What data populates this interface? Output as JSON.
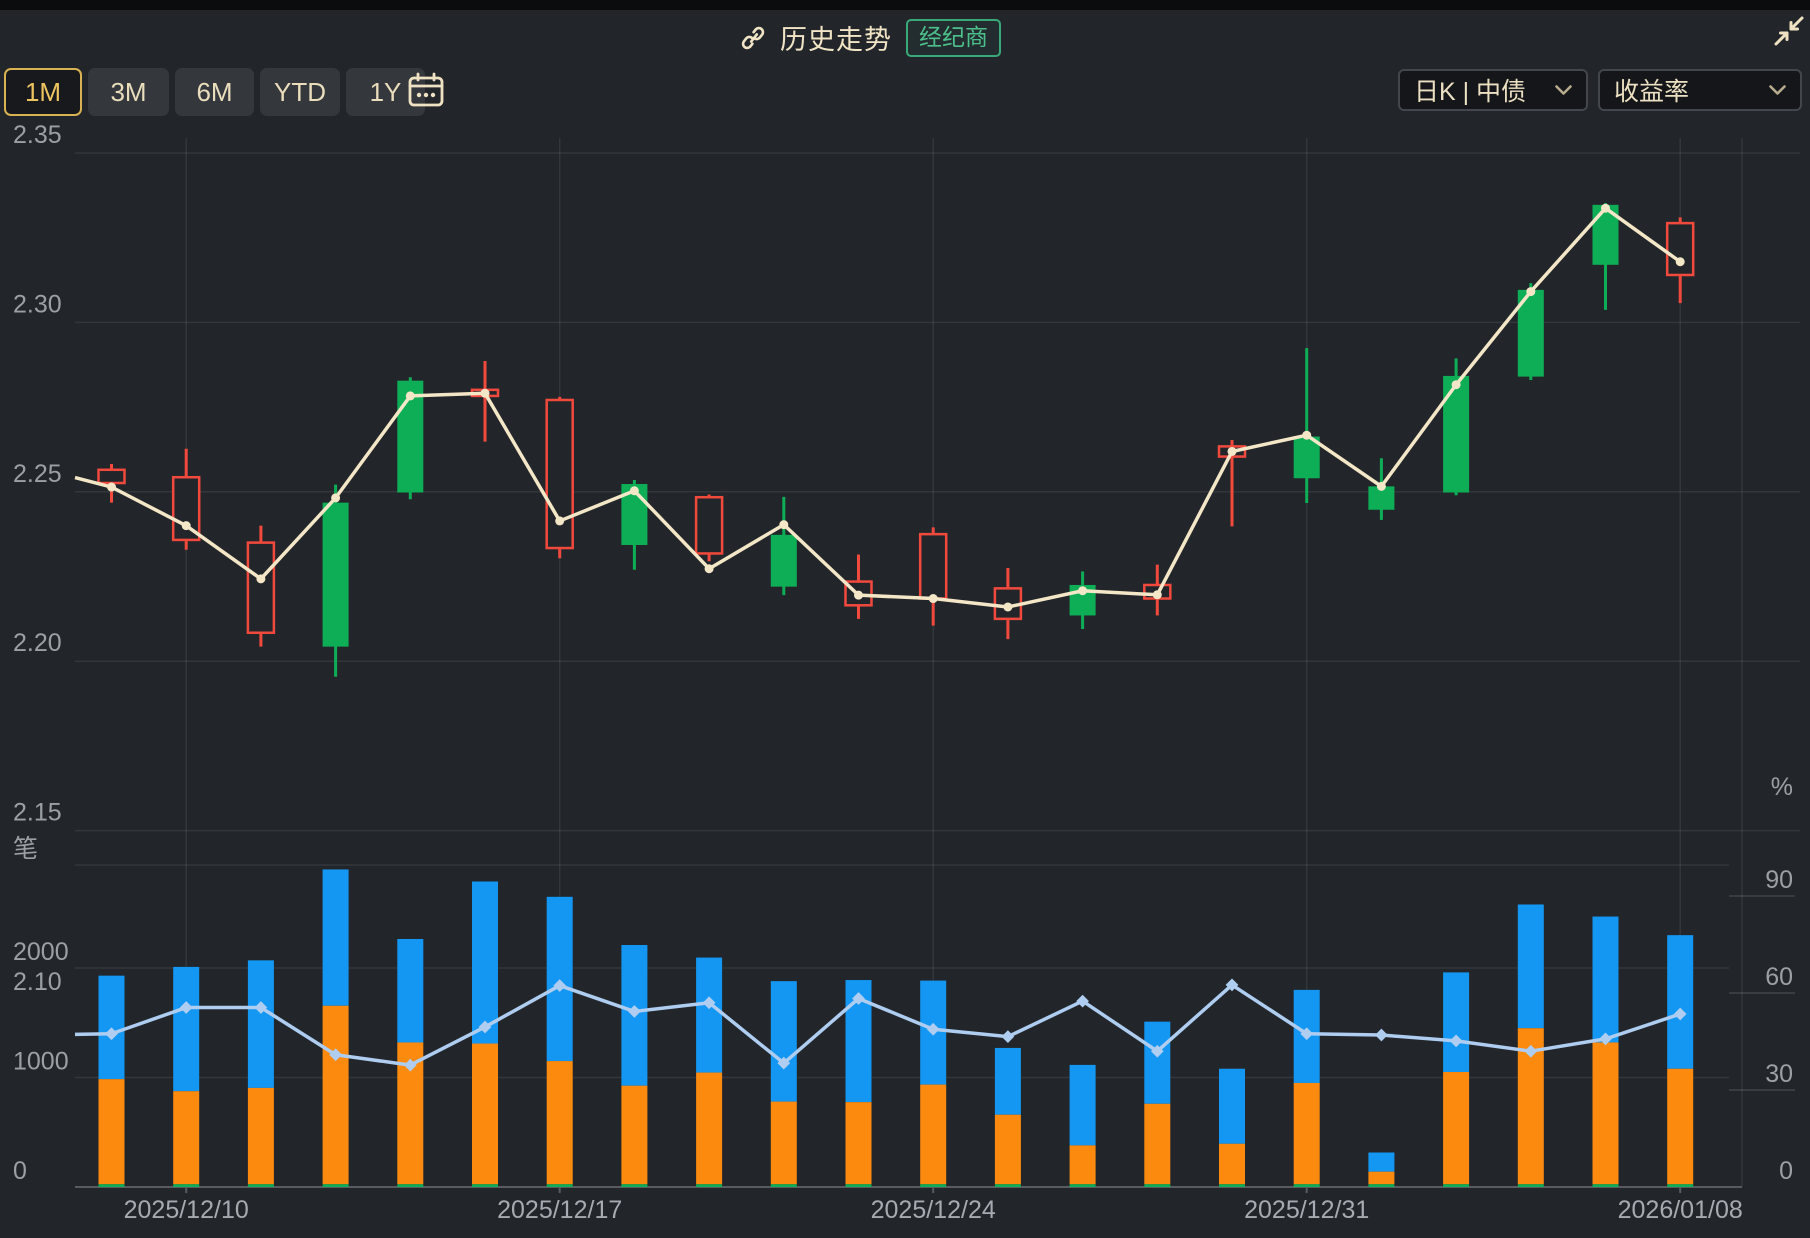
{
  "header": {
    "title": "历史走势",
    "badge": "经纪商"
  },
  "toolbar": {
    "ranges": [
      "1M",
      "3M",
      "6M",
      "YTD",
      "1Y"
    ],
    "selected": "1M",
    "selectors": [
      {
        "value": "日K | 中债"
      },
      {
        "value": "收益率"
      }
    ]
  },
  "colors": {
    "background": "#22262b",
    "up_red": "#f2493d",
    "down_green": "#0eae56",
    "reference_line": "#f4e7c7",
    "volume_blue": "#1397f2",
    "volume_orange": "#fb8a0e",
    "volume_green_base": "#0eae56",
    "pct_line": "#aecdf0",
    "axis_label": "#9ba0a5",
    "selected_range_gold": "#d9b254",
    "badge_green": "#3aa97a"
  },
  "chart_data": [
    {
      "type": "candlestick",
      "panel": "price",
      "title": "",
      "ylabel": "",
      "ylim": [
        2.1,
        2.35
      ],
      "grid": true,
      "y_ticks": [
        "2.35",
        "2.30",
        "2.25",
        "2.20",
        "2.15",
        "2.10"
      ],
      "x_tick_labels": [
        {
          "index": 1,
          "label": "2025/12/10"
        },
        {
          "index": 6,
          "label": "2025/12/17"
        },
        {
          "index": 11,
          "label": "2025/12/24"
        },
        {
          "index": 16,
          "label": "2025/12/31"
        },
        {
          "index": 21,
          "label": "2026/01/08"
        }
      ],
      "series": [
        {
          "name": "broker-candles",
          "type": "candlestick",
          "ohlc_open": [
            2.2526,
            2.2358,
            2.2084,
            2.2468,
            2.2828,
            2.2783,
            2.2334,
            2.2523,
            2.2318,
            2.2373,
            2.2165,
            2.2185,
            2.2125,
            2.2225,
            2.2185,
            2.2604,
            2.2663,
            2.2516,
            2.2842,
            2.3096,
            2.3347,
            2.314
          ],
          "ohlc_close": [
            2.2565,
            2.2543,
            2.235,
            2.2043,
            2.2498,
            2.2801,
            2.2771,
            2.2343,
            2.2484,
            2.222,
            2.2235,
            2.2375,
            2.2215,
            2.2135,
            2.2225,
            2.2634,
            2.254,
            2.2447,
            2.2498,
            2.284,
            2.317,
            2.3293
          ],
          "ohlc_high": [
            2.2582,
            2.2627,
            2.24,
            2.2521,
            2.2838,
            2.2886,
            2.278,
            2.2535,
            2.2492,
            2.2485,
            2.2315,
            2.2395,
            2.2275,
            2.2265,
            2.2285,
            2.2653,
            2.2924,
            2.2599,
            2.2894,
            2.3116,
            2.3352,
            2.331
          ],
          "ohlc_low": [
            2.2468,
            2.2329,
            2.2043,
            2.1954,
            2.2478,
            2.2648,
            2.2304,
            2.227,
            2.2295,
            2.2195,
            2.2125,
            2.2105,
            2.2065,
            2.2095,
            2.2135,
            2.2398,
            2.2467,
            2.2417,
            2.249,
            2.283,
            2.3037,
            2.3057
          ]
        },
        {
          "name": "reference-yield-line",
          "type": "line",
          "lead_value": 2.2542,
          "values": [
            2.2514,
            2.24,
            2.2243,
            2.2482,
            2.2783,
            2.2791,
            2.2414,
            2.2503,
            2.2273,
            2.2403,
            2.2195,
            2.2185,
            2.216,
            2.2208,
            2.2196,
            2.2619,
            2.2667,
            2.2516,
            2.2816,
            2.3091,
            2.3337,
            2.3179
          ]
        }
      ]
    },
    {
      "type": "bar",
      "panel": "volume",
      "y_left_title": "笔",
      "y_left_ticks": [
        "2000",
        "1000",
        "0"
      ],
      "y_right_title": "%",
      "y_right_ticks": [
        "90",
        "60",
        "30",
        "0"
      ],
      "ylim_left": [
        0,
        2940
      ],
      "ylim_right": [
        0,
        99.6
      ],
      "series": [
        {
          "name": "volume-total",
          "type": "bar",
          "values": [
            1930,
            2010,
            2070,
            2900,
            2265,
            2790,
            2650,
            2210,
            2095,
            1880,
            1890,
            1885,
            1270,
            1115,
            1510,
            1080,
            1800,
            315,
            1960,
            2580,
            2470,
            2300
          ]
        },
        {
          "name": "volume-orange-segment",
          "type": "bar",
          "values": [
            985,
            875,
            905,
            1655,
            1320,
            1310,
            1150,
            925,
            1045,
            780,
            775,
            935,
            660,
            380,
            760,
            395,
            950,
            140,
            1050,
            1450,
            1320,
            1080
          ]
        },
        {
          "name": "volume-green-base-segment",
          "type": "bar",
          "base_value": 25
        },
        {
          "name": "percent-line",
          "type": "line",
          "lead_value": 47.2,
          "values": [
            47.4,
            55.5,
            55.5,
            40.9,
            37.7,
            49.5,
            62.3,
            54.3,
            57.0,
            38.3,
            58.3,
            48.8,
            46.5,
            57.5,
            42.0,
            62.5,
            47.4,
            47.0,
            45.2,
            42.0,
            45.8,
            53.5
          ]
        }
      ]
    }
  ]
}
